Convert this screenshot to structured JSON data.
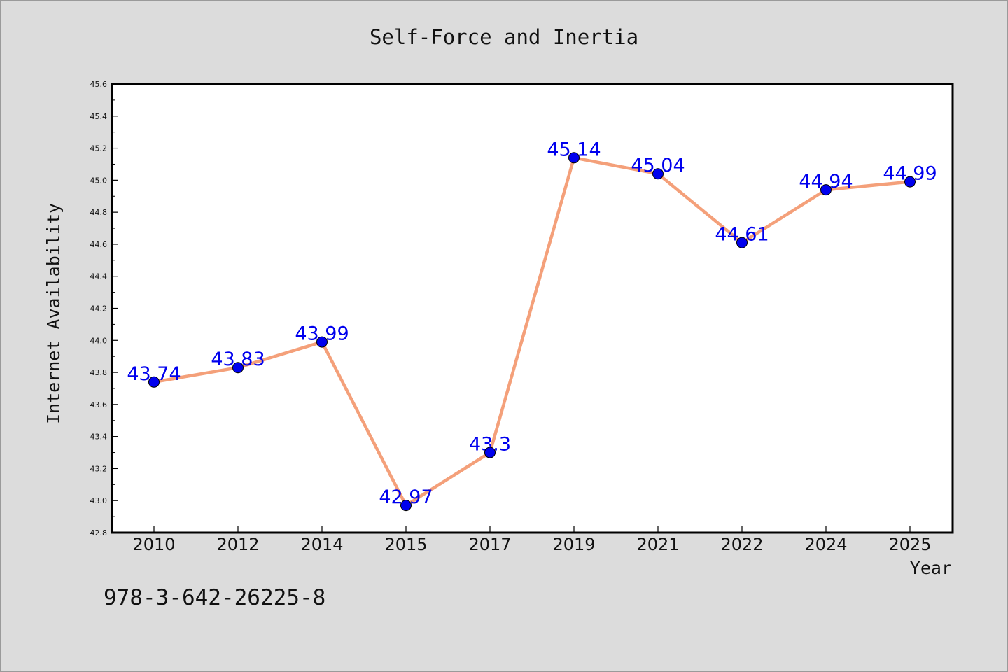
{
  "chart_data": {
    "type": "line",
    "title": "Self-Force and Inertia",
    "xlabel": "Year",
    "ylabel": "Internet Availability",
    "categories": [
      "2010",
      "2012",
      "2014",
      "2015",
      "2017",
      "2019",
      "2021",
      "2022",
      "2024",
      "2025"
    ],
    "values": [
      43.74,
      43.83,
      43.99,
      42.97,
      43.3,
      45.14,
      45.04,
      44.61,
      44.94,
      44.99
    ],
    "data_labels": [
      "43.74",
      "43.83",
      "43.99",
      "42.97",
      "43.3",
      "45.14",
      "45.04",
      "44.61",
      "44.94",
      "44.99"
    ],
    "ylim": [
      42.8,
      45.6
    ],
    "yticks": [
      "42.8",
      "43.0",
      "43.2",
      "43.4",
      "43.6",
      "43.8",
      "44.0",
      "44.2",
      "44.4",
      "44.6",
      "44.8",
      "45.0",
      "45.2",
      "45.4",
      "45.6"
    ],
    "grid": false,
    "line_color": "#f4a07a",
    "marker_color": "#0000ee",
    "label_color": "#0000ee"
  },
  "annotation": "978-3-642-26225-8"
}
